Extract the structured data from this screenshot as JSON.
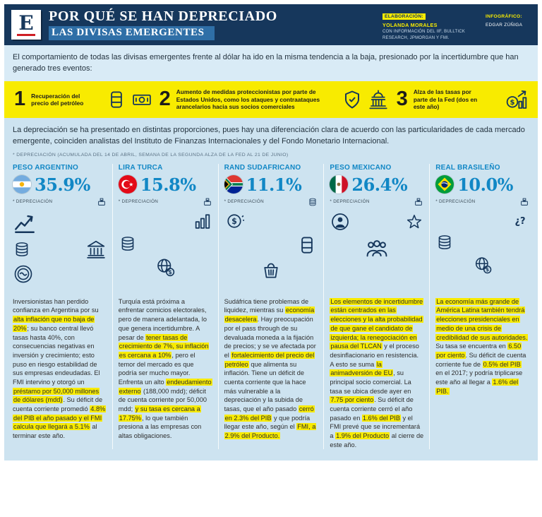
{
  "header": {
    "logo_letter": "E",
    "title_line1": "POR QUÉ SE HAN DEPRECIADO",
    "title_line2": "LAS DIVISAS EMERGENTES",
    "credits": {
      "elaboracion_label": "ELABORACIÓN:",
      "elaboracion_name": "YOLANDA MORALES",
      "elaboracion_info": "CON INFORMACIÓN DEL IIF, BULLTICK RESEARCH, JPMORGAN Y FMI.",
      "infografico_label": "INFOGRÁFICO:",
      "infografico_name": "EDGAR ZÚÑIGA"
    }
  },
  "intro": "El comportamiento de todas las divisas emergentes frente al dólar ha ido en la misma tendencia a la baja, presionado por la incertidumbre que han generado tres eventos:",
  "events": [
    {
      "num": "1",
      "text": "Recuperación del precio del petróleo",
      "icons": [
        "oil-barrel-icon",
        "money-bill-icon"
      ]
    },
    {
      "num": "2",
      "text": "Aumento de medidas proteccionistas por parte de Estados Unidos, como los ataques y contraataques arancelarios hacia sus socios comerciales",
      "icons": [
        "shield-icon",
        "capitol-icon"
      ]
    },
    {
      "num": "3",
      "text": "Alza de las tasas por parte de la Fed (dos en este año)",
      "icons": [
        "coin-chart-icon"
      ]
    }
  ],
  "depreciation_paragraph": "La depreciación se ha presentado en distintas proporciones, pues hay una diferenciación clara de acuerdo con las particularidades de cada mercado emergente, coinciden analistas del Instituto de Finanzas Internacionales y del Fondo Monetario Internacional.",
  "footnote": "* DEPRECIACIÓN (ACUMULADA DEL 14 DE ABRIL, SEMANA DE LA SEGUNDA ALZA DE LA FED AL 21 DE JUNIO)",
  "colors": {
    "navy": "#16375c",
    "band_blue": "#2f6fa7",
    "accent_blue": "#1187c5",
    "yellow": "#f8eb00",
    "background": "#cde3f0"
  },
  "chart_data": {
    "type": "table",
    "title": "POR QUÉ SE HAN DEPRECIADO LAS DIVISAS EMERGENTES",
    "categories": [
      "PESO ARGENTINO",
      "LIRA TURCA",
      "RAND SUDAFRICANO",
      "PESO MEXICANO",
      "REAL BRASILEÑO"
    ],
    "values": [
      35.9,
      15.8,
      11.1,
      26.4,
      10.0
    ],
    "unit": "% depreciación acumulada del 14 de abril al 21 de junio"
  },
  "currencies": [
    {
      "name": "PESO ARGENTINO",
      "flag": "argentina",
      "value": "35.9%",
      "note": "* DEPRECIACIÓN",
      "icons": [
        "ballot-box-icon",
        "line-chart-icon",
        "coins-icon",
        "bank-icon",
        "imf-seal-icon"
      ],
      "body": [
        {
          "t": "Inversionistas han perdido confianza en Argentina por su "
        },
        {
          "t": "alta inflación que no baja de 20%",
          "h": true
        },
        {
          "t": "; su banco central llevó tasas hasta 40%, con consecuencias negativas en inversión y crecimiento; esto puso en riesgo estabilidad de sus empresas endeudadas. El FMI intervino y otorgó un "
        },
        {
          "t": "préstamo por 50,000 millones de dólares (mdd)",
          "h": true
        },
        {
          "t": ". Su déficit de cuenta corriente promedió "
        },
        {
          "t": "4.8% del PIB el año pasado y el FMI calcula que llegará a 5.1%",
          "h": true
        },
        {
          "t": " al terminar este año."
        }
      ]
    },
    {
      "name": "LIRA TURCA",
      "flag": "turquia",
      "value": "15.8%",
      "note": "* DEPRECIACIÓN",
      "icons": [
        "ballot-box-icon",
        "bar-chart-icon",
        "coins-icon",
        "globe-dollar-icon"
      ],
      "body": [
        {
          "t": "Turquía está próxima a enfrentar comicios electorales, pero de manera adelantada, lo que genera incertidumbre. A pesar de "
        },
        {
          "t": "tener tasas de crecimiento de 7%, su inflación es cercana a 10%",
          "h": true
        },
        {
          "t": ", pero el temor del mercado es que podría ser mucho mayor. Enfrenta un alto "
        },
        {
          "t": "endeudamiento externo",
          "h": true
        },
        {
          "t": " (188,000 mdd); déficit de cuenta corriente por 50,000 mdd; "
        },
        {
          "t": "y su tasa es cercana a 17.75%",
          "h": true
        },
        {
          "t": ", lo que también presiona a las empresas con altas obligaciones."
        }
      ]
    },
    {
      "name": "RAND SUDAFRICANO",
      "flag": "sudafrica",
      "value": "11.1%",
      "note": "* DEPRECIACIÓN",
      "icons": [
        "coin-dollar-icon",
        "oil-barrel-icon",
        "market-basket-icon"
      ],
      "body": [
        {
          "t": "Sudáfrica tiene problemas de liquidez, mientras su "
        },
        {
          "t": "economía desacelera",
          "h": true
        },
        {
          "t": ". Hay preocupación por el pass through de su devaluada moneda a la fijación de precios; y se ve afectada por el "
        },
        {
          "t": "fortalecimiento del precio del petróleo",
          "h": true
        },
        {
          "t": " que alimenta su inflación. Tiene un déficit de cuenta corriente que la hace más vulnerable a la depreciación y la subida de tasas, que el año pasado "
        },
        {
          "t": "cerró en 2.3% del PIB",
          "h": true
        },
        {
          "t": " y que podría llegar este año, según el "
        },
        {
          "t": "FMI, a 2.9% del Producto.",
          "h": true
        }
      ]
    },
    {
      "name": "PESO MEXICANO",
      "flag": "mexico",
      "value": "26.4%",
      "note": "* DEPRECIACIÓN",
      "icons": [
        "ballot-box-icon",
        "person-globe-icon",
        "star-icon",
        "people-icon"
      ],
      "body": [
        {
          "t": "Los elementos de incertidumbre están centrados en las elecciones y la alta probabilidad de que gane el candidato de izquierda; la renegociación en pausa del TLCAN",
          "h": true
        },
        {
          "t": " y el proceso desinflacionario en resistencia. A esto se suma "
        },
        {
          "t": "la animadversión de EU",
          "h": true
        },
        {
          "t": ", su principal socio comercial. La tasa se ubica desde ayer en "
        },
        {
          "t": "7.75 por ciento",
          "h": true
        },
        {
          "t": ". Su déficit de cuenta corriente cerró el año pasado en "
        },
        {
          "t": "1.6% del PIB",
          "h": true
        },
        {
          "t": " y el FMI prevé que se incrementará a "
        },
        {
          "t": "1.9% del Producto",
          "h": true
        },
        {
          "t": " al cierre de este año."
        }
      ]
    },
    {
      "name": "REAL BRASILEÑO",
      "flag": "brasil",
      "value": "10.0%",
      "note": "* DEPRECIACIÓN",
      "icons": [
        "ballot-box-icon",
        "question-icon",
        "coins-icon",
        "globe-dollar-icon"
      ],
      "body": [
        {
          "t": "La economía más grande de América Latina también tendrá elecciones presidenciales en medio de una crisis de credibilidad de sus autoridades.",
          "h": true
        },
        {
          "t": " Su tasa se encuentra en "
        },
        {
          "t": "6.50 por ciento",
          "h": true
        },
        {
          "t": ". Su déficit de cuenta corriente fue de "
        },
        {
          "t": "0.5% del PIB",
          "h": true
        },
        {
          "t": " en el 2017; y podría triplicarse este año al llegar a "
        },
        {
          "t": "1.6% del PIB.",
          "h": true
        }
      ]
    }
  ]
}
